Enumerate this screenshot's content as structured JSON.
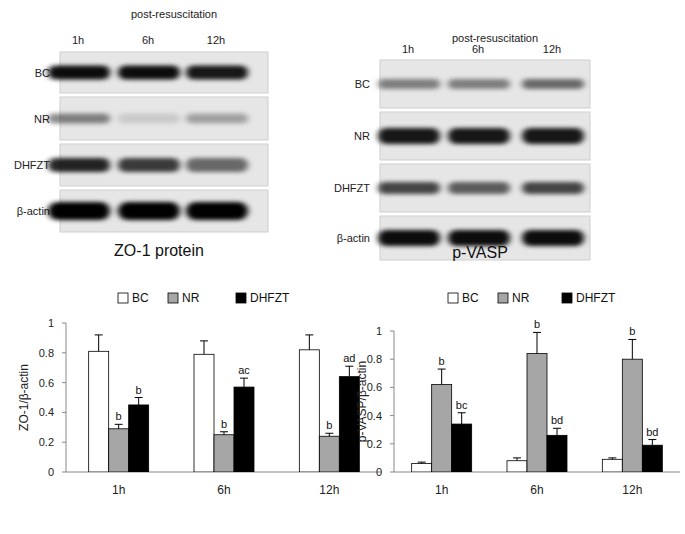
{
  "blots": [
    {
      "title": "ZO-1 protein",
      "header": "post-resuscitation",
      "lanes": [
        "1h",
        "6h",
        "12h"
      ],
      "rows": [
        "BC",
        "NR",
        "DHFZT",
        "β-actin"
      ]
    },
    {
      "title": "p-VASP",
      "header": "post-resuscitation",
      "lanes": [
        "1h",
        "6h",
        "12h"
      ],
      "rows": [
        "BC",
        "NR",
        "DHFZT",
        "β-actin"
      ]
    }
  ],
  "chart_data": [
    {
      "type": "bar",
      "y_label": "ZO-1/β-actin",
      "categories": [
        "1h",
        "6h",
        "12h"
      ],
      "ylim": [
        0,
        1
      ],
      "yticks": [
        0,
        0.2,
        0.4,
        0.6,
        0.8,
        1
      ],
      "legend": "top",
      "series": [
        {
          "name": "BC",
          "color": "#ffffff",
          "values": [
            0.81,
            0.79,
            0.82
          ],
          "errors": [
            0.11,
            0.09,
            0.1
          ]
        },
        {
          "name": "NR",
          "color": "#a6a6a6",
          "values": [
            0.29,
            0.25,
            0.24
          ],
          "errors": [
            0.03,
            0.02,
            0.02
          ],
          "annotations": [
            "b",
            "b",
            "b"
          ]
        },
        {
          "name": "DHFZT",
          "color": "#000000",
          "values": [
            0.45,
            0.57,
            0.64
          ],
          "errors": [
            0.05,
            0.06,
            0.07
          ],
          "annotations": [
            "b",
            "ac",
            "ad"
          ]
        }
      ]
    },
    {
      "type": "bar",
      "y_label": "p-VASP/β-actin",
      "categories": [
        "1h",
        "6h",
        "12h"
      ],
      "ylim": [
        0,
        1
      ],
      "yticks": [
        0,
        0.2,
        0.4,
        0.6,
        0.8,
        1
      ],
      "legend": "top",
      "series": [
        {
          "name": "BC",
          "color": "#ffffff",
          "values": [
            0.06,
            0.08,
            0.09
          ],
          "errors": [
            0.01,
            0.02,
            0.01
          ]
        },
        {
          "name": "NR",
          "color": "#a6a6a6",
          "values": [
            0.62,
            0.84,
            0.8
          ],
          "errors": [
            0.11,
            0.15,
            0.14
          ],
          "annotations": [
            "b",
            "b",
            "b"
          ]
        },
        {
          "name": "DHFZT",
          "color": "#000000",
          "values": [
            0.34,
            0.26,
            0.19
          ],
          "errors": [
            0.08,
            0.05,
            0.04
          ],
          "annotations": [
            "bc",
            "bd",
            "bd"
          ]
        }
      ]
    }
  ]
}
